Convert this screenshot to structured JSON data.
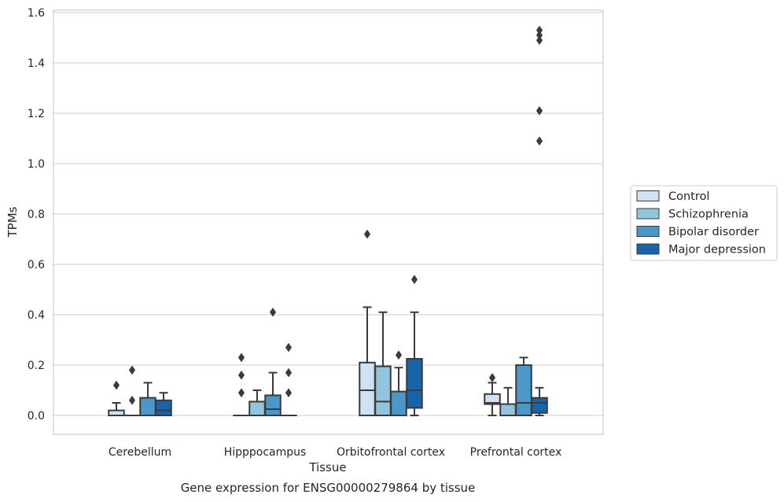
{
  "caption": "Gene expression for ENSG00000279864 by tissue",
  "chart_data": {
    "type": "boxplot",
    "xlabel": "Tissue",
    "ylabel": "TPMs",
    "ylim": [
      -0.07,
      1.61
    ],
    "yticks": [
      0.0,
      0.2,
      0.4,
      0.6,
      0.8,
      1.0,
      1.2,
      1.4,
      1.6
    ],
    "ytick_labels": [
      "0.0",
      "0.2",
      "0.4",
      "0.6",
      "0.8",
      "1.0",
      "1.2",
      "1.4",
      "1.6"
    ],
    "grid": "horizontal",
    "legend_position": "right",
    "categories": [
      "Cerebellum",
      "Hipppocampus",
      "Orbitofrontal cortex",
      "Prefrontal cortex"
    ],
    "series": [
      {
        "name": "Control",
        "color": "#cfe1f2",
        "boxes": [
          {
            "whislo": 0.0,
            "q1": 0.0,
            "med": 0.0,
            "q3": 0.02,
            "whishi": 0.05,
            "fliers": [
              0.12
            ]
          },
          {
            "whislo": 0.0,
            "q1": 0.0,
            "med": 0.0,
            "q3": 0.0,
            "whishi": 0.0,
            "fliers": [
              0.09,
              0.16,
              0.23
            ]
          },
          {
            "whislo": 0.0,
            "q1": 0.0,
            "med": 0.1,
            "q3": 0.21,
            "whishi": 0.43,
            "fliers": [
              0.72
            ]
          },
          {
            "whislo": 0.0,
            "q1": 0.045,
            "med": 0.05,
            "q3": 0.085,
            "whishi": 0.13,
            "fliers": [
              0.15
            ]
          }
        ]
      },
      {
        "name": "Schizophrenia",
        "color": "#93c4de",
        "boxes": [
          {
            "whislo": 0.0,
            "q1": 0.0,
            "med": 0.0,
            "q3": 0.0,
            "whishi": 0.0,
            "fliers": [
              0.06,
              0.18
            ]
          },
          {
            "whislo": 0.0,
            "q1": 0.0,
            "med": 0.0,
            "q3": 0.055,
            "whishi": 0.1,
            "fliers": []
          },
          {
            "whislo": 0.0,
            "q1": 0.0,
            "med": 0.055,
            "q3": 0.195,
            "whishi": 0.41,
            "fliers": []
          },
          {
            "whislo": 0.0,
            "q1": 0.0,
            "med": 0.0,
            "q3": 0.045,
            "whishi": 0.11,
            "fliers": []
          }
        ]
      },
      {
        "name": "Bipolar disorder",
        "color": "#4a98c9",
        "boxes": [
          {
            "whislo": 0.0,
            "q1": 0.0,
            "med": 0.0,
            "q3": 0.07,
            "whishi": 0.13,
            "fliers": []
          },
          {
            "whislo": 0.0,
            "q1": 0.0,
            "med": 0.025,
            "q3": 0.08,
            "whishi": 0.17,
            "fliers": [
              0.41
            ]
          },
          {
            "whislo": 0.0,
            "q1": 0.0,
            "med": 0.0,
            "q3": 0.095,
            "whishi": 0.19,
            "fliers": [
              0.24
            ]
          },
          {
            "whislo": 0.0,
            "q1": 0.0,
            "med": 0.05,
            "q3": 0.2,
            "whishi": 0.23,
            "fliers": []
          }
        ]
      },
      {
        "name": "Major depression",
        "color": "#1764ab",
        "boxes": [
          {
            "whislo": 0.0,
            "q1": 0.0,
            "med": 0.02,
            "q3": 0.06,
            "whishi": 0.09,
            "fliers": []
          },
          {
            "whislo": 0.0,
            "q1": 0.0,
            "med": 0.0,
            "q3": 0.0,
            "whishi": 0.0,
            "fliers": [
              0.09,
              0.17,
              0.27
            ]
          },
          {
            "whislo": 0.0,
            "q1": 0.03,
            "med": 0.1,
            "q3": 0.225,
            "whishi": 0.41,
            "fliers": [
              0.54
            ]
          },
          {
            "whislo": 0.0,
            "q1": 0.01,
            "med": 0.05,
            "q3": 0.07,
            "whishi": 0.11,
            "fliers": [
              1.09,
              1.21,
              1.49,
              1.51,
              1.53
            ]
          }
        ]
      }
    ]
  }
}
